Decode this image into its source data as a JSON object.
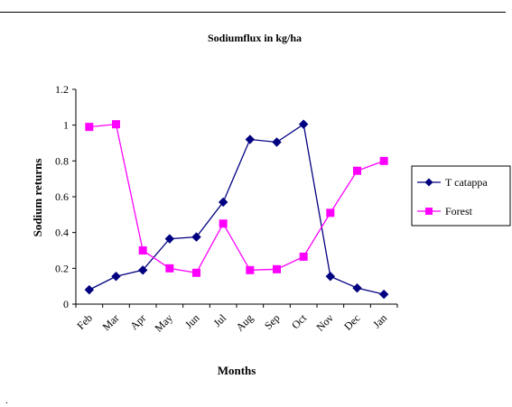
{
  "footnote": ".",
  "chart_data": {
    "type": "line",
    "title": "Sodiumflux in kg/ha",
    "xlabel": "Months",
    "ylabel": "Sodium returns",
    "categories": [
      "Feb",
      "Mar",
      "Apr",
      "May",
      "Jun",
      "Jul",
      "Aug",
      "Sep",
      "Oct",
      "Nov",
      "Dec",
      "Jan"
    ],
    "ylim": [
      0,
      1.2
    ],
    "yticks": [
      "0",
      "0.2",
      "0.4",
      "0.6",
      "0.8",
      "1",
      "1.2"
    ],
    "grid": false,
    "legend_position": "right",
    "series": [
      {
        "name": "T catappa",
        "color": "#000080",
        "marker": "diamond",
        "values": [
          0.08,
          0.155,
          0.19,
          0.365,
          0.375,
          0.57,
          0.92,
          0.905,
          1.005,
          0.155,
          0.09,
          0.055
        ]
      },
      {
        "name": "Forest",
        "color": "#ff00ff",
        "marker": "square",
        "values": [
          0.99,
          1.005,
          0.3,
          0.2,
          0.175,
          0.45,
          0.19,
          0.195,
          0.265,
          0.51,
          0.745,
          0.8
        ]
      }
    ]
  }
}
